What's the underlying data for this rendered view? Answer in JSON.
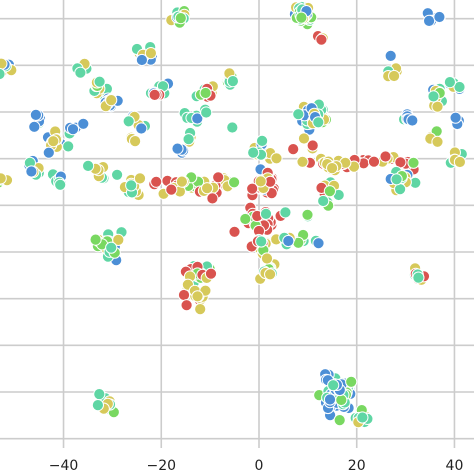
{
  "chart_data": {
    "type": "scatter",
    "title": "",
    "xlabel": "",
    "ylabel": "",
    "xlim": [
      -53,
      44
    ],
    "ylim": [
      -42,
      54
    ],
    "grid": true,
    "legend": "none",
    "x_ticks": [
      -40,
      -20,
      0,
      20,
      40
    ],
    "x_tick_labels": [
      "−40",
      "−20",
      "0",
      "20",
      "40"
    ],
    "y_ticks": [
      -40,
      -30,
      -20,
      -10,
      0,
      10,
      20,
      30,
      40,
      50
    ],
    "colors": [
      "#4c8fd6",
      "#5fd6a4",
      "#d6c95a",
      "#79d861",
      "#d9534f"
    ],
    "clusters": [
      {
        "cx": 9.0,
        "cy": 51.0,
        "n": 40,
        "sd": 1.0,
        "mix": [
          0.1,
          0.3,
          0.35,
          0.25,
          0.0
        ]
      },
      {
        "cx": 12.8,
        "cy": 45.8,
        "n": 4,
        "sd": 0.4,
        "mix": [
          0.0,
          0.0,
          0.5,
          0.0,
          0.5
        ]
      },
      {
        "cx": -16.0,
        "cy": 50.5,
        "n": 12,
        "sd": 0.8,
        "mix": [
          0.3,
          0.3,
          0.2,
          0.2,
          0.0
        ]
      },
      {
        "cx": 35.5,
        "cy": 50.0,
        "n": 8,
        "sd": 0.6,
        "mix": [
          0.4,
          0.4,
          0.2,
          0.0,
          0.0
        ]
      },
      {
        "cx": -52.0,
        "cy": 39.5,
        "n": 10,
        "sd": 0.8,
        "mix": [
          0.3,
          0.4,
          0.3,
          0.0,
          0.0
        ]
      },
      {
        "cx": -36.0,
        "cy": 39.0,
        "n": 4,
        "sd": 0.6,
        "mix": [
          0.3,
          0.4,
          0.3,
          0.0,
          0.0
        ]
      },
      {
        "cx": -24.0,
        "cy": 42.0,
        "n": 12,
        "sd": 0.8,
        "mix": [
          0.4,
          0.3,
          0.3,
          0.0,
          0.0
        ]
      },
      {
        "cx": -32.5,
        "cy": 35.5,
        "n": 14,
        "sd": 0.8,
        "mix": [
          0.0,
          0.4,
          0.4,
          0.2,
          0.0
        ]
      },
      {
        "cx": -20.5,
        "cy": 35.0,
        "n": 12,
        "sd": 0.9,
        "mix": [
          0.4,
          0.5,
          0.1,
          0.0,
          0.0
        ]
      },
      {
        "cx": -11.0,
        "cy": 34.5,
        "n": 12,
        "sd": 0.9,
        "mix": [
          0.0,
          0.3,
          0.3,
          0.2,
          0.2
        ]
      },
      {
        "cx": -6.0,
        "cy": 37.0,
        "n": 10,
        "sd": 0.8,
        "mix": [
          0.1,
          0.4,
          0.3,
          0.2,
          0.0
        ]
      },
      {
        "cx": -30.0,
        "cy": 32.0,
        "n": 10,
        "sd": 0.8,
        "mix": [
          0.4,
          0.2,
          0.4,
          0.0,
          0.0
        ]
      },
      {
        "cx": 27.0,
        "cy": 42.0,
        "n": 1,
        "sd": 0.1,
        "mix": [
          1,
          0,
          0,
          0,
          0
        ]
      },
      {
        "cx": 27.5,
        "cy": 38.5,
        "n": 6,
        "sd": 0.6,
        "mix": [
          0.0,
          0.3,
          0.7,
          0.0,
          0.0
        ]
      },
      {
        "cx": 36.0,
        "cy": 33.0,
        "n": 14,
        "sd": 1.1,
        "mix": [
          0.1,
          0.5,
          0.3,
          0.1,
          0.0
        ]
      },
      {
        "cx": 40.0,
        "cy": 35.5,
        "n": 6,
        "sd": 0.7,
        "mix": [
          0.3,
          0.5,
          0.2,
          0.0,
          0.0
        ]
      },
      {
        "cx": 30.0,
        "cy": 29.0,
        "n": 6,
        "sd": 0.7,
        "mix": [
          0.5,
          0.3,
          0.2,
          0.0,
          0.0
        ]
      },
      {
        "cx": 35.5,
        "cy": 25.0,
        "n": 5,
        "sd": 0.6,
        "mix": [
          0.0,
          0.4,
          0.4,
          0.2,
          0.0
        ]
      },
      {
        "cx": 40.5,
        "cy": 28.5,
        "n": 5,
        "sd": 0.6,
        "mix": [
          0.6,
          0.4,
          0.0,
          0.0,
          0.0
        ]
      },
      {
        "cx": 40.0,
        "cy": 20.0,
        "n": 6,
        "sd": 0.7,
        "mix": [
          0.0,
          0.4,
          0.6,
          0.0,
          0.0
        ]
      },
      {
        "cx": 10.5,
        "cy": 29.0,
        "n": 42,
        "sd": 1.4,
        "mix": [
          0.3,
          0.4,
          0.2,
          0.1,
          0.0
        ]
      },
      {
        "cx": 9.5,
        "cy": 22.8,
        "n": 4,
        "sd": 0.7,
        "mix": [
          0.0,
          0.0,
          0.5,
          0.0,
          0.5
        ]
      },
      {
        "cx": -46.0,
        "cy": 28.0,
        "n": 6,
        "sd": 0.8,
        "mix": [
          0.3,
          0.4,
          0.3,
          0.0,
          0.0
        ]
      },
      {
        "cx": -41.5,
        "cy": 24.0,
        "n": 12,
        "sd": 1.0,
        "mix": [
          0.2,
          0.4,
          0.4,
          0.0,
          0.0
        ]
      },
      {
        "cx": -37.5,
        "cy": 26.0,
        "n": 6,
        "sd": 0.8,
        "mix": [
          0.5,
          0.4,
          0.1,
          0.0,
          0.0
        ]
      },
      {
        "cx": -25.0,
        "cy": 28.0,
        "n": 8,
        "sd": 0.9,
        "mix": [
          0.3,
          0.4,
          0.3,
          0.0,
          0.0
        ]
      },
      {
        "cx": -25.5,
        "cy": 24.0,
        "n": 3,
        "sd": 0.5,
        "mix": [
          0.0,
          0.0,
          0.6,
          0.4,
          0.0
        ]
      },
      {
        "cx": -13.5,
        "cy": 28.5,
        "n": 6,
        "sd": 0.8,
        "mix": [
          0.5,
          0.5,
          0.0,
          0.0,
          0.0
        ]
      },
      {
        "cx": -14.0,
        "cy": 24.5,
        "n": 4,
        "sd": 0.6,
        "mix": [
          0.0,
          0.3,
          0.7,
          0.0,
          0.0
        ]
      },
      {
        "cx": -15.5,
        "cy": 21.5,
        "n": 2,
        "sd": 0.4,
        "mix": [
          1,
          0,
          0,
          0,
          0
        ]
      },
      {
        "cx": -5.5,
        "cy": 26.5,
        "n": 1,
        "sd": 0.1,
        "mix": [
          0,
          1,
          0,
          0,
          0
        ]
      },
      {
        "cx": 0.5,
        "cy": 21.5,
        "n": 14,
        "sd": 1.1,
        "mix": [
          0.1,
          0.5,
          0.4,
          0.0,
          0.0
        ]
      },
      {
        "cx": -45.5,
        "cy": 18.5,
        "n": 12,
        "sd": 1.0,
        "mix": [
          0.2,
          0.3,
          0.5,
          0.0,
          0.0
        ]
      },
      {
        "cx": -53.0,
        "cy": 15.5,
        "n": 6,
        "sd": 0.7,
        "mix": [
          0.0,
          0.3,
          0.4,
          0.3,
          0.0
        ]
      },
      {
        "cx": -41.0,
        "cy": 15.0,
        "n": 8,
        "sd": 0.8,
        "mix": [
          0.3,
          0.5,
          0.2,
          0.0,
          0.0
        ]
      },
      {
        "cx": -33.0,
        "cy": 18.0,
        "n": 10,
        "sd": 0.9,
        "mix": [
          0.3,
          0.4,
          0.3,
          0.0,
          0.0
        ]
      },
      {
        "cx": -29.0,
        "cy": 16.5,
        "n": 1,
        "sd": 0.1,
        "mix": [
          0,
          1,
          0,
          0,
          0
        ]
      },
      {
        "cx": -26.0,
        "cy": 14.0,
        "n": 10,
        "sd": 0.9,
        "mix": [
          0.0,
          0.4,
          0.6,
          0.0,
          0.0
        ]
      },
      {
        "cx": -41.0,
        "cy": 14.5,
        "n": 2,
        "sd": 0.4,
        "mix": [
          0,
          1,
          0,
          0,
          0
        ]
      },
      {
        "cx": -12.0,
        "cy": 14.5,
        "n": 40,
        "sd": 0.6,
        "mix": [
          0.0,
          0.1,
          0.5,
          0.1,
          0.3
        ],
        "sx": 4.0,
        "sy": 0.9
      },
      {
        "cx": 1.5,
        "cy": 14.5,
        "n": 30,
        "sd": 1.2,
        "mix": [
          0.1,
          0.0,
          0.4,
          0.0,
          0.5
        ]
      },
      {
        "cx": 22.0,
        "cy": 19.0,
        "n": 32,
        "sd": 0.6,
        "mix": [
          0.0,
          0.0,
          0.4,
          0.0,
          0.6
        ],
        "sx": 6.0,
        "sy": 0.8
      },
      {
        "cx": 14.5,
        "cy": 18.0,
        "n": 8,
        "sd": 0.9,
        "mix": [
          0.0,
          0.2,
          0.5,
          0.3,
          0.0
        ]
      },
      {
        "cx": 14.5,
        "cy": 13.0,
        "n": 8,
        "sd": 0.9,
        "mix": [
          0.0,
          0.2,
          0.3,
          0.2,
          0.3
        ]
      },
      {
        "cx": 14.0,
        "cy": 10.5,
        "n": 4,
        "sd": 0.6,
        "mix": [
          0.0,
          0.3,
          0.3,
          0.4,
          0.0
        ]
      },
      {
        "cx": 29.0,
        "cy": 16.0,
        "n": 20,
        "sd": 1.1,
        "mix": [
          0.1,
          0.5,
          0.3,
          0.1,
          0.0
        ]
      },
      {
        "cx": 0.5,
        "cy": 6.5,
        "n": 26,
        "sd": 0.9,
        "mix": [
          0.0,
          0.2,
          0.0,
          0.2,
          0.6
        ],
        "sx": 3.0,
        "sy": 1.6
      },
      {
        "cx": 0.0,
        "cy": 1.5,
        "n": 10,
        "sd": 1.0,
        "mix": [
          0.0,
          0.1,
          0.4,
          0.1,
          0.4
        ]
      },
      {
        "cx": 6.5,
        "cy": 2.5,
        "n": 12,
        "sd": 0.6,
        "mix": [
          0.2,
          0.3,
          0.2,
          0.3,
          0.0
        ],
        "sx": 2.5,
        "sy": 0.8
      },
      {
        "cx": 1.5,
        "cy": -4.5,
        "n": 12,
        "sd": 1.0,
        "mix": [
          0.0,
          0.3,
          0.4,
          0.3,
          0.0
        ]
      },
      {
        "cx": -12.5,
        "cy": -4.5,
        "n": 20,
        "sd": 1.2,
        "mix": [
          0.0,
          0.1,
          0.3,
          0.2,
          0.4
        ]
      },
      {
        "cx": -13.5,
        "cy": -9.5,
        "n": 14,
        "sd": 1.1,
        "mix": [
          0.0,
          0.1,
          0.6,
          0.0,
          0.3
        ]
      },
      {
        "cx": -31.0,
        "cy": 1.0,
        "n": 28,
        "sd": 1.3,
        "mix": [
          0.2,
          0.3,
          0.3,
          0.2,
          0.0
        ]
      },
      {
        "cx": 32.5,
        "cy": -4.5,
        "n": 8,
        "sd": 0.8,
        "mix": [
          0.0,
          0.4,
          0.2,
          0.0,
          0.4
        ]
      },
      {
        "cx": 16.5,
        "cy": -30.5,
        "n": 70,
        "sd": 1.7,
        "mix": [
          0.5,
          0.3,
          0.0,
          0.2,
          0.0
        ]
      },
      {
        "cx": 21.0,
        "cy": -35.5,
        "n": 8,
        "sd": 0.8,
        "mix": [
          0.0,
          0.3,
          0.4,
          0.3,
          0.0
        ]
      },
      {
        "cx": -31.0,
        "cy": -32.0,
        "n": 12,
        "sd": 1.0,
        "mix": [
          0.0,
          0.3,
          0.4,
          0.3,
          0.0
        ]
      },
      {
        "cx": -16.0,
        "cy": 22.0,
        "n": 2,
        "sd": 0.5,
        "mix": [
          0.5,
          0.0,
          0.0,
          0.5,
          0.0
        ]
      },
      {
        "cx": -20.5,
        "cy": 33.5,
        "n": 3,
        "sd": 0.5,
        "mix": [
          0.0,
          0.0,
          0.0,
          0.0,
          1.0
        ]
      },
      {
        "cx": -11.0,
        "cy": 30.5,
        "n": 2,
        "sd": 0.4,
        "mix": [
          0.5,
          0.5,
          0.0,
          0.0,
          0.0
        ]
      }
    ]
  }
}
